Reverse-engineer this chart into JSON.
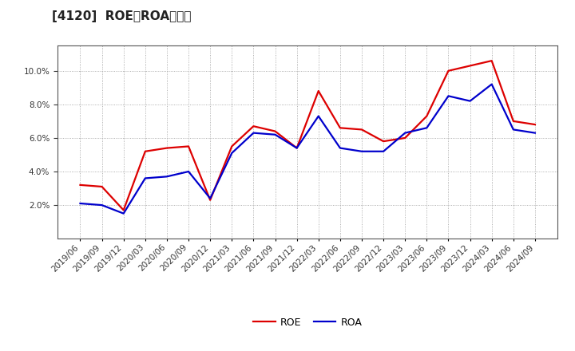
{
  "title": "[4120]  ROE、ROAの推移",
  "x_labels": [
    "2019/06",
    "2019/09",
    "2019/12",
    "2020/03",
    "2020/06",
    "2020/09",
    "2020/12",
    "2021/03",
    "2021/06",
    "2021/09",
    "2021/12",
    "2022/03",
    "2022/06",
    "2022/09",
    "2022/12",
    "2023/03",
    "2023/06",
    "2023/09",
    "2023/12",
    "2024/03",
    "2024/06",
    "2024/09"
  ],
  "roe": [
    3.2,
    3.1,
    1.7,
    5.2,
    5.4,
    5.5,
    2.3,
    5.5,
    6.7,
    6.4,
    5.4,
    8.8,
    6.6,
    6.5,
    5.8,
    6.0,
    7.3,
    10.0,
    10.3,
    10.6,
    7.0,
    6.8
  ],
  "roa": [
    2.1,
    2.0,
    1.5,
    3.6,
    3.7,
    4.0,
    2.4,
    5.1,
    6.3,
    6.2,
    5.4,
    7.3,
    5.4,
    5.2,
    5.2,
    6.3,
    6.6,
    8.5,
    8.2,
    9.2,
    6.5,
    6.3
  ],
  "roe_color": "#dd0000",
  "roa_color": "#0000cc",
  "background_color": "#ffffff",
  "plot_bg_color": "#ffffff",
  "grid_color": "#aaaaaa",
  "ylim_min": 0,
  "ylim_max": 11.5,
  "yticks": [
    2.0,
    4.0,
    6.0,
    8.0,
    10.0
  ],
  "legend_labels": [
    "ROE",
    "ROA"
  ],
  "title_fontsize": 11,
  "tick_fontsize": 7.5,
  "legend_fontsize": 9
}
